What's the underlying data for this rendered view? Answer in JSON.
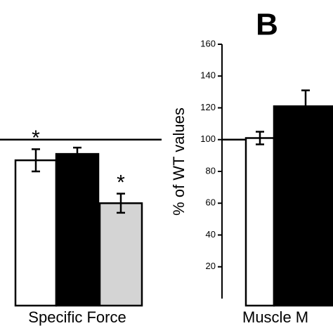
{
  "chart_data": [
    {
      "type": "bar",
      "xlabel": "Specific Force",
      "values": [
        87,
        91,
        60
      ],
      "errors": [
        7,
        4,
        6
      ],
      "colors": [
        "#ffffff",
        "#000000",
        "#d4d4d4"
      ],
      "markers": [
        "*",
        null,
        "*"
      ],
      "ylim": [
        0,
        160
      ],
      "reference_line": 100
    },
    {
      "type": "bar",
      "panel_label": "B",
      "xlabel": "Muscle M",
      "ylabel": "% of WT values",
      "values": [
        101,
        121
      ],
      "errors": [
        4,
        10
      ],
      "colors": [
        "#ffffff",
        "#000000"
      ],
      "ylim": [
        0,
        160
      ],
      "yticks": [
        20,
        40,
        60,
        80,
        100,
        120,
        140,
        160
      ],
      "reference_line": 100
    }
  ]
}
